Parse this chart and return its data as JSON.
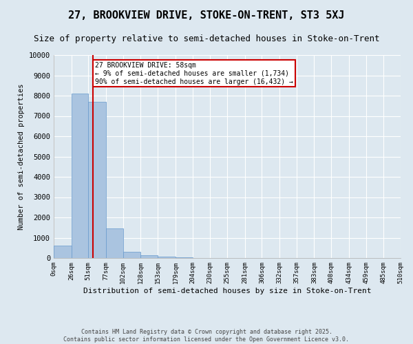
{
  "title": "27, BROOKVIEW DRIVE, STOKE-ON-TRENT, ST3 5XJ",
  "subtitle": "Size of property relative to semi-detached houses in Stoke-on-Trent",
  "xlabel": "Distribution of semi-detached houses by size in Stoke-on-Trent",
  "ylabel": "Number of semi-detached properties",
  "bin_edges": [
    0,
    26,
    51,
    77,
    102,
    128,
    153,
    179,
    204,
    230,
    255,
    281,
    306,
    332,
    357,
    383,
    408,
    434,
    459,
    485,
    510
  ],
  "bar_heights": [
    600,
    8100,
    7700,
    1450,
    300,
    140,
    80,
    50,
    10,
    0,
    0,
    0,
    0,
    0,
    0,
    0,
    0,
    0,
    0,
    0
  ],
  "bar_color": "#aac4e0",
  "bar_edge_color": "#6699cc",
  "property_size": 58,
  "red_line_color": "#cc0000",
  "annotation_text": "27 BROOKVIEW DRIVE: 58sqm\n← 9% of semi-detached houses are smaller (1,734)\n90% of semi-detached houses are larger (16,432) →",
  "annotation_box_color": "#ffffff",
  "annotation_border_color": "#cc0000",
  "ylim": [
    0,
    10000
  ],
  "yticks": [
    0,
    1000,
    2000,
    3000,
    4000,
    5000,
    6000,
    7000,
    8000,
    9000,
    10000
  ],
  "bg_color": "#dde8f0",
  "grid_color": "#ffffff",
  "title_fontsize": 11,
  "subtitle_fontsize": 9,
  "footer_text": "Contains HM Land Registry data © Crown copyright and database right 2025.\nContains public sector information licensed under the Open Government Licence v3.0.",
  "tick_labels": [
    "0sqm",
    "26sqm",
    "51sqm",
    "77sqm",
    "102sqm",
    "128sqm",
    "153sqm",
    "179sqm",
    "204sqm",
    "230sqm",
    "255sqm",
    "281sqm",
    "306sqm",
    "332sqm",
    "357sqm",
    "383sqm",
    "408sqm",
    "434sqm",
    "459sqm",
    "485sqm",
    "510sqm"
  ]
}
